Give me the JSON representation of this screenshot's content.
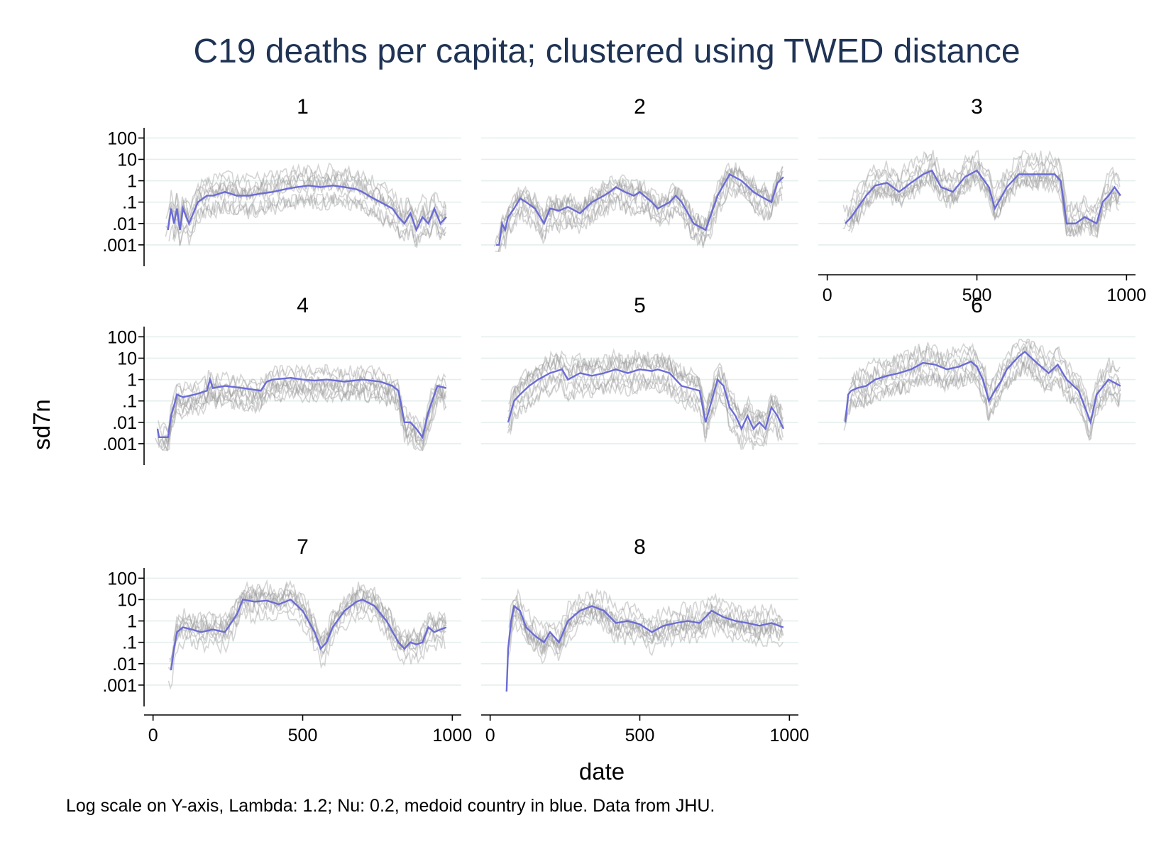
{
  "chart_data": {
    "type": "line",
    "title": "C19 deaths per capita; clustered using TWED distance",
    "xlabel": "date",
    "ylabel": "sd7n",
    "note": "Log scale on Y-axis, Lambda: 1.2; Nu: 0.2, medoid country in blue. Data from JHU.",
    "yscale": "log",
    "ylim": [
      0.0001,
      300
    ],
    "xlim": [
      -30,
      1030
    ],
    "y_ticks": [
      {
        "value": 0.001,
        "label": ".001"
      },
      {
        "value": 0.01,
        "label": ".01"
      },
      {
        "value": 0.1,
        "label": ".1"
      },
      {
        "value": 1,
        "label": "1"
      },
      {
        "value": 10,
        "label": "10"
      },
      {
        "value": 100,
        "label": "100"
      }
    ],
    "x_ticks": [
      {
        "value": 0,
        "label": "0"
      },
      {
        "value": 500,
        "label": "500"
      },
      {
        "value": 1000,
        "label": "1000"
      }
    ],
    "grid": true,
    "colors": {
      "medoid": "#6b6bd6",
      "members": "#9c9c9c",
      "grid": "#e4efed",
      "title": "#1f3354"
    },
    "panels": [
      {
        "label": "1",
        "medoid": {
          "x": [
            50,
            60,
            70,
            80,
            90,
            100,
            120,
            150,
            180,
            200,
            240,
            280,
            320,
            360,
            400,
            440,
            480,
            520,
            560,
            600,
            640,
            680,
            700,
            720,
            760,
            800,
            820,
            840,
            860,
            880,
            900,
            920,
            940,
            960,
            980
          ],
          "y": [
            0.005,
            0.05,
            0.01,
            0.05,
            0.005,
            0.05,
            0.01,
            0.1,
            0.2,
            0.2,
            0.3,
            0.2,
            0.2,
            0.25,
            0.3,
            0.4,
            0.5,
            0.6,
            0.5,
            0.6,
            0.5,
            0.4,
            0.3,
            0.2,
            0.1,
            0.05,
            0.02,
            0.01,
            0.03,
            0.005,
            0.02,
            0.01,
            0.05,
            0.01,
            0.02
          ]
        }
      },
      {
        "label": "2",
        "medoid": {
          "x": [
            20,
            30,
            40,
            50,
            60,
            80,
            100,
            120,
            150,
            180,
            200,
            230,
            260,
            300,
            340,
            380,
            400,
            420,
            450,
            480,
            500,
            540,
            560,
            600,
            620,
            640,
            680,
            720,
            760,
            800,
            840,
            880,
            900,
            940,
            960,
            980
          ],
          "y": [
            0.001,
            0.001,
            0.01,
            0.005,
            0.02,
            0.05,
            0.15,
            0.1,
            0.05,
            0.01,
            0.05,
            0.04,
            0.06,
            0.03,
            0.1,
            0.2,
            0.3,
            0.5,
            0.3,
            0.2,
            0.3,
            0.1,
            0.05,
            0.1,
            0.2,
            0.1,
            0.01,
            0.005,
            0.2,
            2,
            1,
            0.3,
            0.2,
            0.1,
            0.8,
            1.5
          ]
        }
      },
      {
        "label": "3",
        "medoid": {
          "x": [
            60,
            80,
            100,
            130,
            160,
            200,
            240,
            280,
            320,
            350,
            380,
            420,
            460,
            500,
            540,
            560,
            600,
            640,
            680,
            720,
            760,
            780,
            800,
            830,
            860,
            900,
            920,
            940,
            960,
            980
          ],
          "y": [
            0.01,
            0.02,
            0.05,
            0.2,
            0.6,
            0.8,
            0.3,
            0.8,
            2,
            3,
            0.5,
            0.3,
            1.5,
            3,
            0.5,
            0.05,
            0.5,
            2,
            2,
            2,
            2,
            1,
            0.01,
            0.01,
            0.02,
            0.01,
            0.1,
            0.2,
            0.5,
            0.2
          ]
        }
      },
      {
        "label": "4",
        "medoid": {
          "x": [
            15,
            20,
            30,
            40,
            50,
            60,
            70,
            80,
            100,
            140,
            180,
            190,
            200,
            240,
            300,
            360,
            380,
            400,
            460,
            500,
            540,
            580,
            640,
            700,
            760,
            800,
            820,
            840,
            860,
            880,
            900,
            920,
            950,
            980
          ],
          "y": [
            0.005,
            0.002,
            0.002,
            0.002,
            0.002,
            0.02,
            0.06,
            0.2,
            0.15,
            0.2,
            0.3,
            1,
            0.4,
            0.5,
            0.4,
            0.3,
            0.8,
            1,
            1.2,
            1,
            0.9,
            1,
            0.8,
            1,
            0.8,
            0.5,
            0.3,
            0.01,
            0.01,
            0.005,
            0.002,
            0.03,
            0.5,
            0.4
          ]
        }
      },
      {
        "label": "5",
        "medoid": {
          "x": [
            60,
            80,
            100,
            130,
            160,
            200,
            240,
            260,
            300,
            340,
            380,
            420,
            460,
            500,
            540,
            560,
            600,
            640,
            700,
            720,
            740,
            760,
            780,
            800,
            820,
            840,
            860,
            880,
            900,
            920,
            940,
            960,
            980
          ],
          "y": [
            0.01,
            0.1,
            0.2,
            0.5,
            1,
            2,
            3,
            1,
            2,
            1.5,
            2,
            3,
            2,
            3,
            2.5,
            3,
            2,
            0.5,
            0.3,
            0.01,
            0.1,
            1,
            0.5,
            0.05,
            0.02,
            0.005,
            0.02,
            0.005,
            0.01,
            0.005,
            0.05,
            0.02,
            0.005
          ]
        }
      },
      {
        "label": "6",
        "medoid": {
          "x": [
            60,
            70,
            80,
            100,
            130,
            160,
            200,
            240,
            280,
            320,
            360,
            400,
            440,
            480,
            500,
            520,
            540,
            560,
            580,
            600,
            640,
            660,
            700,
            740,
            770,
            800,
            840,
            880,
            900,
            940,
            980
          ],
          "y": [
            0.01,
            0.2,
            0.3,
            0.4,
            0.5,
            1,
            1.5,
            2,
            3,
            6,
            5,
            3,
            4,
            7,
            4,
            1,
            0.1,
            0.3,
            0.8,
            3,
            12,
            20,
            6,
            2,
            5,
            1,
            0.3,
            0.01,
            0.2,
            1,
            0.5
          ]
        }
      },
      {
        "label": "7",
        "medoid": {
          "x": [
            60,
            70,
            80,
            100,
            130,
            160,
            200,
            240,
            280,
            300,
            340,
            380,
            420,
            460,
            500,
            540,
            560,
            580,
            600,
            640,
            680,
            700,
            740,
            780,
            820,
            840,
            860,
            880,
            900,
            920,
            940,
            960,
            980
          ],
          "y": [
            0.005,
            0.05,
            0.3,
            0.5,
            0.4,
            0.3,
            0.4,
            0.3,
            2,
            10,
            8,
            9,
            6,
            10,
            3,
            0.3,
            0.05,
            0.1,
            0.5,
            3,
            8,
            10,
            5,
            1,
            0.1,
            0.05,
            0.1,
            0.08,
            0.1,
            0.5,
            0.3,
            0.4,
            0.5
          ]
        }
      },
      {
        "label": "8",
        "medoid": {
          "x": [
            55,
            60,
            70,
            80,
            100,
            120,
            150,
            180,
            200,
            230,
            260,
            300,
            340,
            380,
            420,
            460,
            500,
            540,
            580,
            620,
            660,
            700,
            740,
            780,
            820,
            860,
            900,
            940,
            980
          ],
          "y": [
            0.0005,
            0.05,
            1,
            5,
            3,
            0.5,
            0.2,
            0.1,
            0.3,
            0.1,
            1,
            3,
            5,
            3,
            0.8,
            1,
            0.7,
            0.3,
            0.6,
            0.8,
            1,
            0.8,
            3,
            1.5,
            1,
            0.8,
            0.6,
            0.8,
            0.5
          ]
        }
      }
    ]
  }
}
